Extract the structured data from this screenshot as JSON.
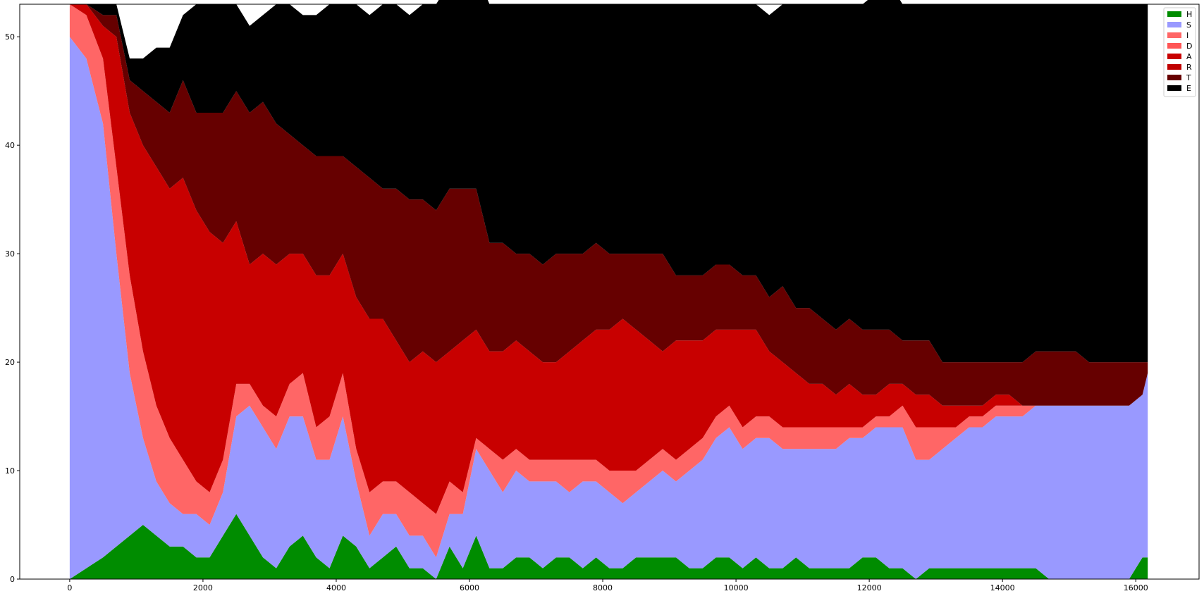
{
  "chart_data": {
    "type": "area",
    "stacked": true,
    "title": "",
    "xlabel": "",
    "ylabel": "",
    "xlim": [
      -750,
      16950
    ],
    "ylim": [
      0,
      53
    ],
    "x_ticks": [
      0,
      2000,
      4000,
      6000,
      8000,
      10000,
      12000,
      14000,
      16000
    ],
    "y_ticks": [
      0,
      10,
      20,
      30,
      40,
      50
    ],
    "grid": false,
    "legend_position": "top-right",
    "x": [
      0,
      250,
      500,
      700,
      900,
      1100,
      1300,
      1500,
      1700,
      1900,
      2100,
      2300,
      2500,
      2700,
      2900,
      3100,
      3300,
      3500,
      3700,
      3900,
      4100,
      4300,
      4500,
      4700,
      4900,
      5100,
      5300,
      5500,
      5700,
      5900,
      6100,
      6300,
      6500,
      6700,
      6900,
      7100,
      7300,
      7500,
      7700,
      7900,
      8100,
      8300,
      8500,
      8700,
      8900,
      9100,
      9300,
      9500,
      9700,
      9900,
      10100,
      10300,
      10500,
      10700,
      10900,
      11100,
      11300,
      11500,
      11700,
      11900,
      12100,
      12300,
      12500,
      12700,
      12900,
      13100,
      13300,
      13500,
      13700,
      13900,
      14100,
      14300,
      14500,
      14700,
      14900,
      15100,
      15300,
      15500,
      15700,
      15900,
      16100,
      16180
    ],
    "series": [
      {
        "name": "H",
        "color": "#008c00",
        "values": [
          0,
          1,
          2,
          3,
          4,
          5,
          4,
          3,
          3,
          2,
          2,
          4,
          6,
          4,
          2,
          1,
          3,
          4,
          2,
          1,
          4,
          3,
          1,
          2,
          3,
          1,
          1,
          0,
          3,
          1,
          4,
          1,
          1,
          2,
          2,
          1,
          2,
          2,
          1,
          2,
          1,
          1,
          2,
          2,
          2,
          2,
          1,
          1,
          2,
          2,
          1,
          2,
          1,
          1,
          2,
          1,
          1,
          1,
          1,
          2,
          2,
          1,
          1,
          0,
          1,
          1,
          1,
          1,
          1,
          1,
          1,
          1,
          1,
          0,
          0,
          0,
          0,
          0,
          0,
          0,
          2,
          2
        ]
      },
      {
        "name": "S",
        "color": "#9999ff",
        "values": [
          50,
          47,
          40,
          27,
          15,
          8,
          5,
          4,
          3,
          4,
          3,
          4,
          9,
          12,
          12,
          11,
          12,
          11,
          9,
          10,
          11,
          6,
          3,
          4,
          3,
          3,
          3,
          2,
          3,
          5,
          8,
          9,
          7,
          8,
          7,
          8,
          7,
          6,
          8,
          7,
          7,
          6,
          6,
          7,
          8,
          7,
          9,
          10,
          11,
          12,
          11,
          11,
          12,
          11,
          10,
          11,
          11,
          11,
          12,
          11,
          12,
          13,
          13,
          11,
          10,
          11,
          12,
          13,
          13,
          14,
          14,
          14,
          15,
          16,
          16,
          16,
          16,
          16,
          16,
          16,
          15,
          17
        ]
      },
      {
        "name": "I",
        "color": "#ff6666",
        "values": [
          3,
          4,
          6,
          8,
          9,
          8,
          7,
          6,
          5,
          3,
          3,
          3,
          3,
          2,
          2,
          3,
          3,
          4,
          3,
          4,
          4,
          3,
          4,
          3,
          3,
          4,
          3,
          4,
          3,
          2,
          1,
          2,
          3,
          2,
          2,
          2,
          2,
          3,
          2,
          2,
          2,
          3,
          2,
          2,
          2,
          2,
          2,
          2,
          2,
          2,
          2,
          2,
          2,
          2,
          2,
          2,
          2,
          2,
          1,
          1,
          1,
          1,
          2,
          3,
          3,
          2,
          1,
          1,
          1,
          1,
          1,
          1,
          0,
          0,
          0,
          0,
          0,
          0,
          0,
          0,
          0,
          0
        ]
      },
      {
        "name": "D",
        "color": "#ff5555",
        "values": [
          0,
          0,
          0,
          0,
          0,
          0,
          0,
          0,
          0,
          0,
          0,
          0,
          0,
          0,
          0,
          0,
          0,
          0,
          0,
          0,
          0,
          0,
          0,
          0,
          0,
          0,
          0,
          0,
          0,
          0,
          0,
          0,
          0,
          0,
          0,
          0,
          0,
          0,
          0,
          0,
          0,
          0,
          0,
          0,
          0,
          0,
          0,
          0,
          0,
          0,
          0,
          0,
          0,
          0,
          0,
          0,
          0,
          0,
          0,
          0,
          0,
          0,
          0,
          0,
          0,
          0,
          0,
          0,
          0,
          0,
          0,
          0,
          0,
          0,
          0,
          0,
          0,
          0,
          0,
          0,
          0,
          0
        ]
      },
      {
        "name": "A",
        "color": "#c80000",
        "values": [
          0,
          1,
          3,
          12,
          15,
          19,
          22,
          23,
          26,
          25,
          24,
          20,
          15,
          11,
          14,
          14,
          12,
          11,
          14,
          13,
          11,
          14,
          16,
          15,
          13,
          12,
          14,
          14,
          12,
          14,
          10,
          9,
          10,
          10,
          10,
          9,
          9,
          10,
          11,
          12,
          13,
          14,
          13,
          11,
          9,
          11,
          10,
          9,
          8,
          7,
          9,
          8,
          6,
          6,
          5,
          4,
          4,
          3,
          4,
          3,
          2,
          3,
          2,
          3,
          3,
          2,
          2,
          1,
          1,
          1,
          1,
          0,
          0,
          0,
          0,
          0,
          0,
          0,
          0,
          0,
          0,
          0
        ]
      },
      {
        "name": "R",
        "color": "#c00000",
        "values": [
          0,
          0,
          0,
          0,
          0,
          0,
          0,
          0,
          0,
          0,
          0,
          0,
          0,
          0,
          0,
          0,
          0,
          0,
          0,
          0,
          0,
          0,
          0,
          0,
          0,
          0,
          0,
          0,
          0,
          0,
          0,
          0,
          0,
          0,
          0,
          0,
          0,
          0,
          0,
          0,
          0,
          0,
          0,
          0,
          0,
          0,
          0,
          0,
          0,
          0,
          0,
          0,
          0,
          0,
          0,
          0,
          0,
          0,
          0,
          0,
          0,
          0,
          0,
          0,
          0,
          0,
          0,
          0,
          0,
          0,
          0,
          0,
          0,
          0,
          0,
          0,
          0,
          0,
          0,
          0,
          0,
          0
        ]
      },
      {
        "name": "T",
        "color": "#660000",
        "values": [
          0,
          0,
          1,
          2,
          3,
          5,
          6,
          7,
          9,
          9,
          11,
          12,
          12,
          14,
          14,
          13,
          11,
          10,
          11,
          11,
          9,
          12,
          13,
          12,
          14,
          15,
          14,
          14,
          15,
          14,
          13,
          10,
          10,
          8,
          9,
          9,
          10,
          9,
          8,
          8,
          7,
          6,
          7,
          8,
          9,
          6,
          6,
          6,
          6,
          6,
          5,
          5,
          5,
          7,
          6,
          7,
          6,
          6,
          6,
          6,
          6,
          5,
          4,
          5,
          5,
          4,
          4,
          4,
          4,
          3,
          3,
          4,
          5,
          5,
          5,
          5,
          4,
          4,
          4,
          4,
          3,
          1
        ]
      },
      {
        "name": "E",
        "color": "#000000",
        "values": [
          0,
          0,
          1,
          1,
          2,
          3,
          5,
          6,
          6,
          10,
          10,
          10,
          8,
          8,
          8,
          11,
          12,
          12,
          13,
          14,
          14,
          15,
          15,
          17,
          17,
          17,
          18,
          19,
          19,
          19,
          20,
          22,
          22,
          23,
          23,
          24,
          23,
          23,
          23,
          22,
          23,
          23,
          23,
          23,
          23,
          25,
          25,
          25,
          24,
          24,
          25,
          25,
          26,
          26,
          28,
          28,
          29,
          30,
          29,
          30,
          31,
          32,
          31,
          31,
          31,
          33,
          33,
          33,
          33,
          33,
          33,
          33,
          32,
          32,
          32,
          32,
          33,
          33,
          33,
          33,
          33,
          33
        ]
      }
    ]
  }
}
